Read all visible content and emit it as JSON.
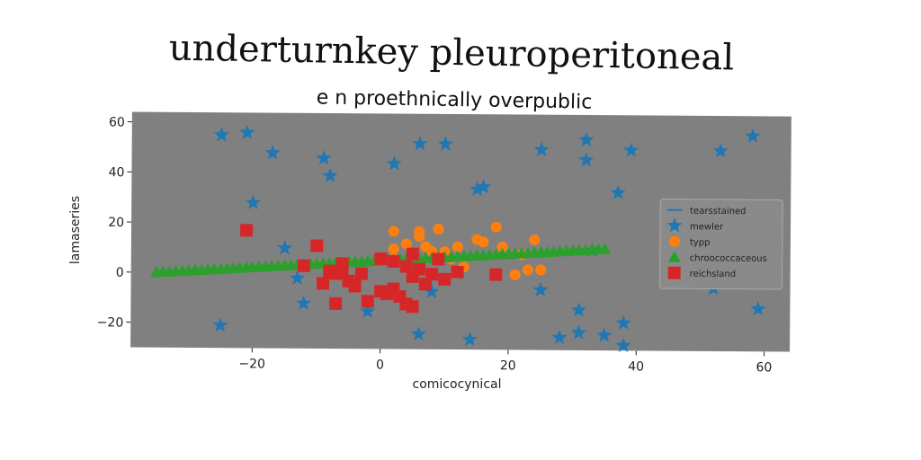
{
  "chart_data": {
    "type": "scatter",
    "title": "underturnkey pleuroperitoneal",
    "subtitle": "e n proethnically overpublic",
    "xlabel": "comicocynical",
    "ylabel": "lamaseries",
    "xlim": [
      -39,
      64
    ],
    "ylim": [
      -30,
      64
    ],
    "xticks": [
      -20,
      0,
      20,
      40,
      60
    ],
    "yticks": [
      -20,
      0,
      20,
      40,
      60
    ],
    "tick_labels": {
      "x": [
        "−20",
        "0",
        "20",
        "40",
        "60"
      ],
      "y": [
        "−20",
        "0",
        "20",
        "40",
        "60"
      ]
    },
    "grid": false,
    "legend_position": "center-right",
    "background": "#808080",
    "series": [
      {
        "name": "tearsstained",
        "marker": "line",
        "color": "#1f77b4",
        "points": []
      },
      {
        "name": "mewler",
        "marker": "star",
        "color": "#1f77b4",
        "points": [
          [
            -25,
            55
          ],
          [
            -21,
            56
          ],
          [
            -17,
            48
          ],
          [
            -9,
            46
          ],
          [
            -8,
            39
          ],
          [
            -20,
            28
          ],
          [
            2,
            44
          ],
          [
            6,
            52
          ],
          [
            10,
            52
          ],
          [
            15,
            34
          ],
          [
            16,
            35
          ],
          [
            25,
            50
          ],
          [
            32,
            54
          ],
          [
            32,
            46
          ],
          [
            39,
            50
          ],
          [
            37,
            33
          ],
          [
            53,
            50
          ],
          [
            58,
            56
          ],
          [
            -15,
            10
          ],
          [
            -13,
            -2
          ],
          [
            -12,
            -12
          ],
          [
            -2,
            -15
          ],
          [
            8,
            -7
          ],
          [
            6,
            -24
          ],
          [
            14,
            -26
          ],
          [
            25,
            -6
          ],
          [
            28,
            -25
          ],
          [
            31,
            -14
          ],
          [
            31,
            -23
          ],
          [
            35,
            -24
          ],
          [
            38,
            -19
          ],
          [
            38,
            -28
          ],
          [
            52,
            -5
          ],
          [
            59,
            -13
          ],
          [
            -25,
            -21
          ],
          [
            33,
            10
          ]
        ]
      },
      {
        "name": "typp",
        "marker": "circle",
        "color": "#ff7f0e",
        "points": [
          [
            2,
            17
          ],
          [
            6,
            17
          ],
          [
            9,
            18
          ],
          [
            6,
            15
          ],
          [
            2,
            10
          ],
          [
            4,
            12
          ],
          [
            7,
            11
          ],
          [
            10,
            9
          ],
          [
            12,
            11
          ],
          [
            15,
            14
          ],
          [
            18,
            19
          ],
          [
            19,
            11
          ],
          [
            22,
            8
          ],
          [
            23,
            2
          ],
          [
            25,
            2
          ],
          [
            21,
            0
          ],
          [
            13,
            3
          ],
          [
            11,
            6
          ],
          [
            8,
            9
          ],
          [
            16,
            13
          ],
          [
            24,
            14
          ],
          [
            2,
            6
          ],
          [
            5,
            7
          ]
        ]
      },
      {
        "name": "chroococcaceous",
        "marker": "triangle",
        "color": "#2ca02c",
        "points": [
          [
            -35,
            0
          ],
          [
            -34,
            0.2
          ],
          [
            -33,
            0.3
          ],
          [
            -32,
            0.5
          ],
          [
            -31,
            0.7
          ],
          [
            -30,
            0.8
          ],
          [
            -29,
            1
          ],
          [
            -28,
            1.1
          ],
          [
            -27,
            1.3
          ],
          [
            -26,
            1.4
          ],
          [
            -25,
            1.6
          ],
          [
            -24,
            1.7
          ],
          [
            -23,
            1.9
          ],
          [
            -22,
            2
          ],
          [
            -21,
            2.2
          ],
          [
            -20,
            2.3
          ],
          [
            -19,
            2.5
          ],
          [
            -18,
            2.6
          ],
          [
            -17,
            2.8
          ],
          [
            -16,
            2.9
          ],
          [
            -15,
            3.1
          ],
          [
            -14,
            3.2
          ],
          [
            -13,
            3.4
          ],
          [
            -12,
            3.5
          ],
          [
            -11,
            3.7
          ],
          [
            -10,
            3.8
          ],
          [
            -9,
            4
          ],
          [
            -8,
            4.1
          ],
          [
            -7,
            4.3
          ],
          [
            -6,
            4.4
          ],
          [
            -5,
            4.6
          ],
          [
            -4,
            4.7
          ],
          [
            -3,
            4.9
          ],
          [
            -2,
            5
          ],
          [
            -1,
            5.2
          ],
          [
            0,
            5.3
          ],
          [
            1,
            5.5
          ],
          [
            2,
            5.6
          ],
          [
            3,
            5.8
          ],
          [
            4,
            5.9
          ],
          [
            5,
            6.1
          ],
          [
            6,
            6.2
          ],
          [
            7,
            6.4
          ],
          [
            8,
            6.5
          ],
          [
            9,
            6.7
          ],
          [
            10,
            6.8
          ],
          [
            11,
            7
          ],
          [
            12,
            7.1
          ],
          [
            13,
            7.3
          ],
          [
            14,
            7.4
          ],
          [
            15,
            7.6
          ],
          [
            16,
            7.7
          ],
          [
            17,
            7.9
          ],
          [
            18,
            8
          ],
          [
            19,
            8.2
          ],
          [
            20,
            8.3
          ],
          [
            21,
            8.5
          ],
          [
            22,
            8.6
          ],
          [
            23,
            8.8
          ],
          [
            24,
            8.9
          ],
          [
            25,
            9.1
          ],
          [
            26,
            9.2
          ],
          [
            27,
            9.4
          ],
          [
            28,
            9.5
          ],
          [
            29,
            9.7
          ],
          [
            30,
            9.8
          ],
          [
            31,
            10
          ],
          [
            32,
            10.1
          ],
          [
            33,
            10.3
          ],
          [
            34,
            10.4
          ],
          [
            35,
            10.6
          ]
        ]
      },
      {
        "name": "reichsland",
        "marker": "square",
        "color": "#d62728",
        "points": [
          [
            -21,
            17
          ],
          [
            -12,
            3
          ],
          [
            -10,
            11
          ],
          [
            -9,
            -4
          ],
          [
            -8,
            1
          ],
          [
            -7,
            0
          ],
          [
            -6,
            4
          ],
          [
            -5,
            -3
          ],
          [
            -4,
            -5
          ],
          [
            -3,
            0
          ],
          [
            -2,
            -11
          ],
          [
            0,
            6
          ],
          [
            0,
            -7
          ],
          [
            1,
            -8
          ],
          [
            2,
            -6
          ],
          [
            3,
            -9
          ],
          [
            4,
            3
          ],
          [
            5,
            -1
          ],
          [
            5,
            8
          ],
          [
            6,
            2
          ],
          [
            7,
            -4
          ],
          [
            8,
            0
          ],
          [
            9,
            6
          ],
          [
            10,
            -2
          ],
          [
            12,
            1
          ],
          [
            18,
            0
          ],
          [
            -7,
            -12
          ],
          [
            -6,
            1
          ],
          [
            4,
            -12
          ],
          [
            5,
            -13
          ],
          [
            2,
            5
          ]
        ]
      }
    ]
  }
}
